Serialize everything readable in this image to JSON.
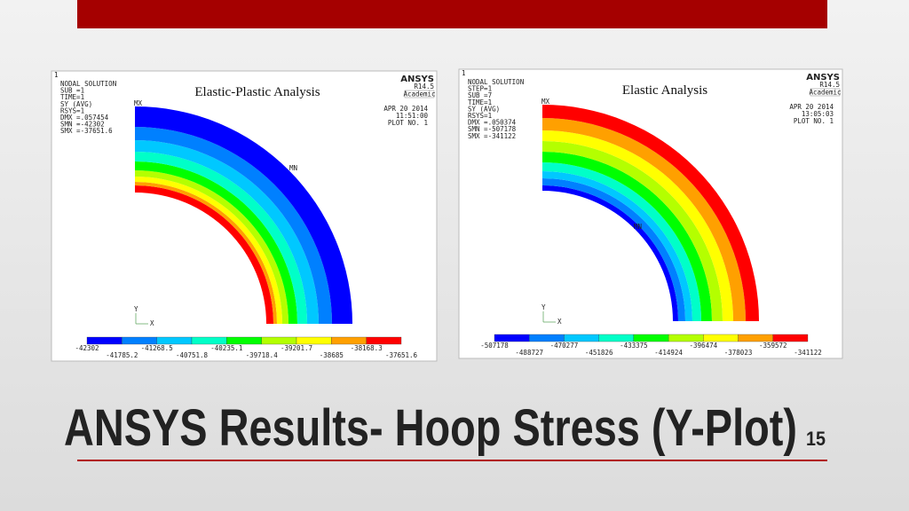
{
  "header": {
    "title": "ANSYS Results- Hoop Stress (Y-Plot)",
    "page_number": "15"
  },
  "panels": [
    {
      "index": "1",
      "info": [
        "NODAL SOLUTION",
        "SUB =1",
        "TIME=1",
        "SY (AVG)",
        "RSYS=1",
        "DMX =.057454",
        "SMN =-42302",
        "SMX =-37651.6"
      ],
      "caption": "Elastic-Plastic Analysis",
      "logo": {
        "name": "ANSYS",
        "version": "R14.5",
        "license": "Academic"
      },
      "date": [
        "APR 20 2014",
        "11:51:00",
        "PLOT NO. 1"
      ],
      "max_marker": "MX",
      "min_marker": "MN",
      "axes": [
        "Y",
        "X"
      ],
      "legend": [
        "-42302",
        "-41785.2",
        "-41268.5",
        "-40751.8",
        "-40235.1",
        "-39718.4",
        "-39201.7",
        "-38685",
        "-38168.3",
        "-37651.6"
      ]
    },
    {
      "index": "1",
      "info": [
        "NODAL SOLUTION",
        "STEP=1",
        "SUB =7",
        "TIME=1",
        "SY (AVG)",
        "RSYS=1",
        "DMX =.050374",
        "SMN =-507178",
        "SMX =-341122"
      ],
      "caption": "Elastic Analysis",
      "logo": {
        "name": "ANSYS",
        "version": "R14.5",
        "license": "Academic"
      },
      "date": [
        "APR 20 2014",
        "13:05:03",
        "PLOT NO. 1"
      ],
      "max_marker": "MX",
      "min_marker": "MN",
      "axes": [
        "Y",
        "X"
      ],
      "legend": [
        "-507178",
        "-488727",
        "-470277",
        "-451826",
        "-433375",
        "-414924",
        "-396474",
        "-378023",
        "-359572",
        "-341122"
      ]
    }
  ]
}
